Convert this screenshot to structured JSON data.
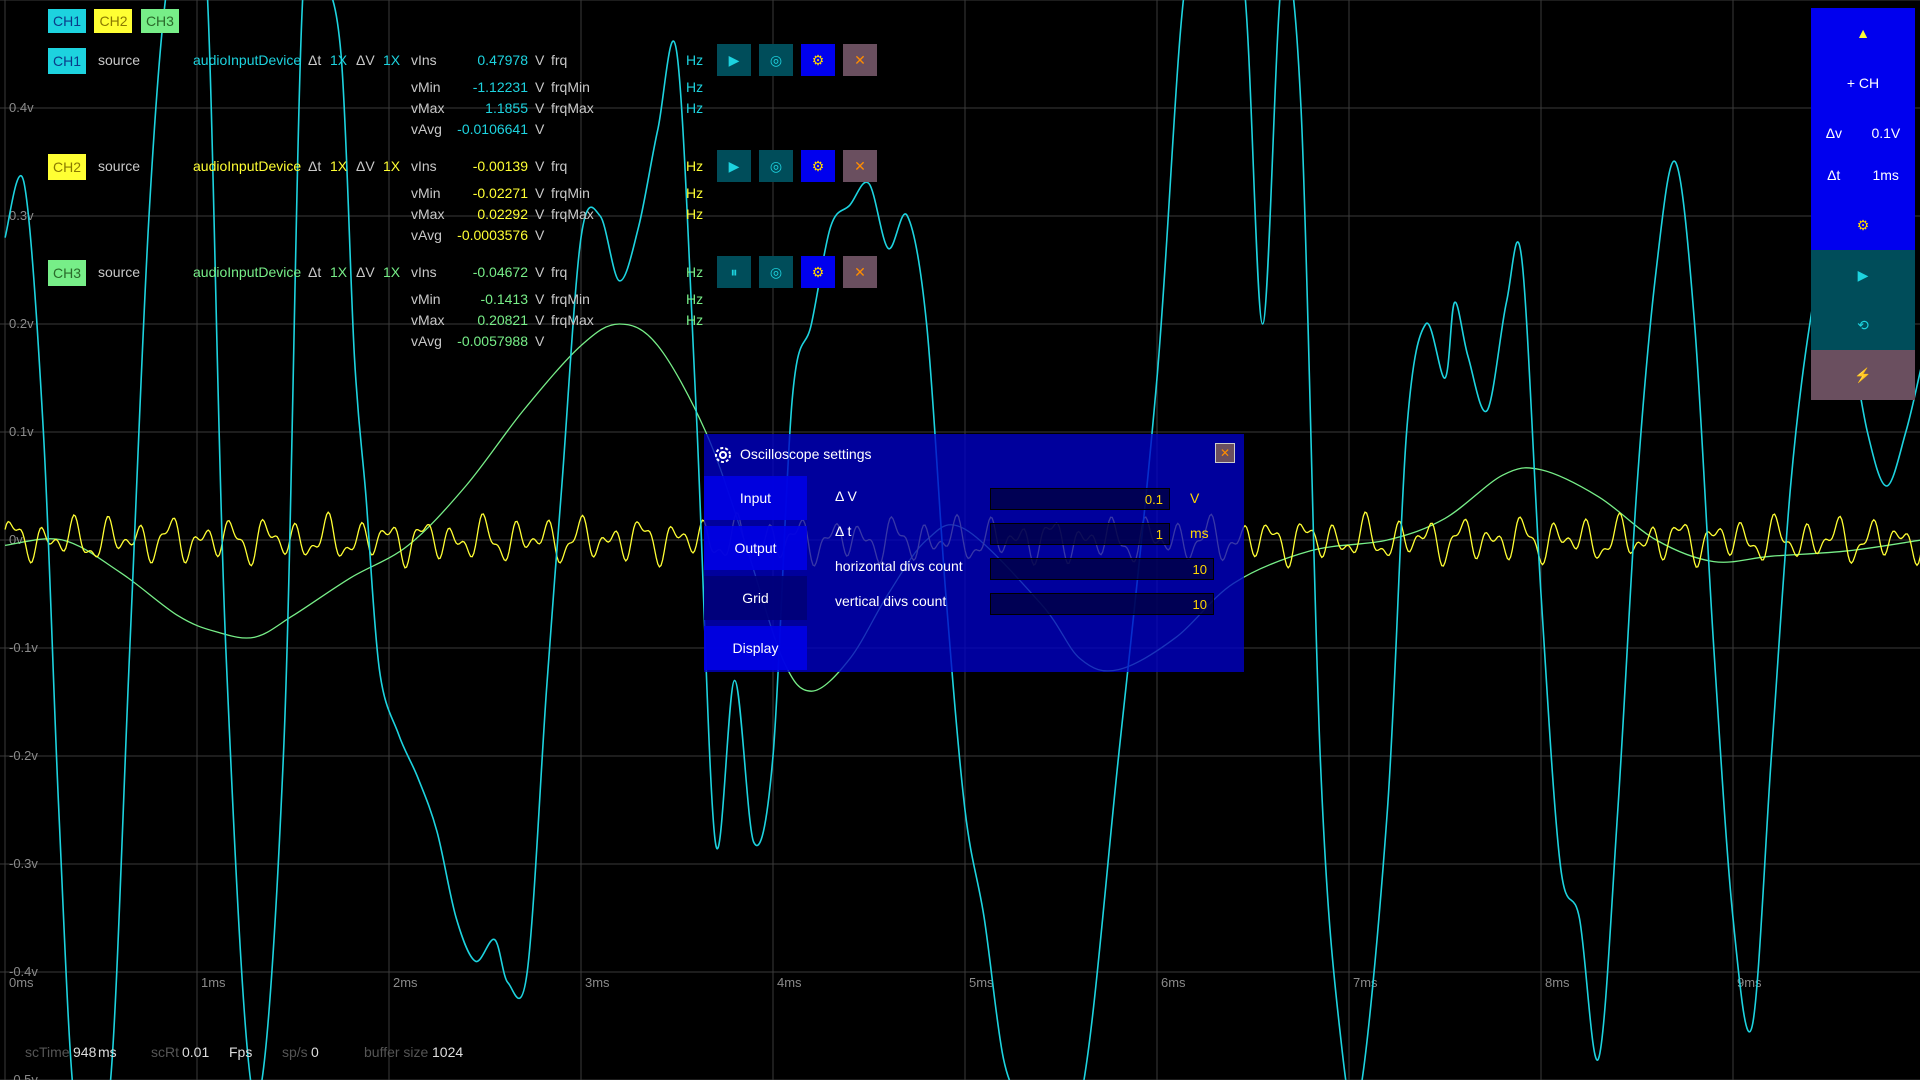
{
  "colors": {
    "ch1": "#1dd3df",
    "ch2": "#ffff33",
    "ch3": "#77ee88",
    "grid": "#3a3a3a",
    "panel_blue": "#0000ee",
    "panel_teal": "#004d5a",
    "panel_rose": "#6a4f5f"
  },
  "legend": [
    "CH1",
    "CH2",
    "CH3"
  ],
  "axes": {
    "y_labels": [
      "0.4v",
      "0.3v",
      "0.2v",
      "0.1v",
      "0v",
      "-0.1v",
      "-0.2v",
      "-0.3v",
      "-0.4v",
      "-0.5v"
    ],
    "x_labels": [
      "0ms",
      "1ms",
      "2ms",
      "3ms",
      "4ms",
      "5ms",
      "6ms",
      "7ms",
      "8ms",
      "9ms"
    ]
  },
  "channel_labels": {
    "source": "source",
    "device": "audioInputDevice",
    "dt": "Δt",
    "mult_t": "1X",
    "dv": "ΔV",
    "mult_v": "1X",
    "vins": "vIns",
    "vmin": "vMin",
    "vmax": "vMax",
    "vavg": "vAvg",
    "frq": "frq",
    "frqmin": "frqMin",
    "frqmax": "frqMax",
    "unit_v": "V",
    "unit_hz": "Hz"
  },
  "channels": [
    {
      "name": "CH1",
      "vins": "0.47978",
      "vmin": "-1.12231",
      "vmax": "1.1855",
      "vavg": "-0.0106641",
      "play_icon": "▶"
    },
    {
      "name": "CH2",
      "vins": "-0.00139",
      "vmin": "-0.02271",
      "vmax": "0.02292",
      "vavg": "-0.0003576",
      "play_icon": "▶"
    },
    {
      "name": "CH3",
      "vins": "-0.04672",
      "vmin": "-0.1413",
      "vmax": "0.20821",
      "vavg": "-0.0057988",
      "play_icon": "⏸"
    }
  ],
  "right_panel": {
    "up": "▲",
    "add_channel": "+ CH",
    "dv_label": "Δv",
    "dv_value": "0.1V",
    "dt_label": "Δt",
    "dt_value": "1ms",
    "settings": "⚙",
    "play": "▶",
    "reset": "⟲",
    "trigger": "⚡"
  },
  "dialog": {
    "title": "Oscilloscope settings",
    "close": "✕",
    "tabs": [
      "Input",
      "Output",
      "Grid",
      "Display"
    ],
    "active_tab": "Grid",
    "fields": [
      {
        "label": "Δ V",
        "value": "0.1",
        "unit": "V"
      },
      {
        "label": "Δ t",
        "value": "1",
        "unit": "ms"
      },
      {
        "label": "horizontal divs count",
        "value": "10",
        "unit": ""
      },
      {
        "label": "vertical divs count",
        "value": "10",
        "unit": ""
      }
    ]
  },
  "status": {
    "sctime_label": "scTime",
    "sctime_value": "948",
    "sctime_unit": "ms",
    "scrt_label": "scRt",
    "scrt_value": "0.01",
    "fps_label": "Fps",
    "sps_label": "sp/s",
    "sps_value": "0",
    "buffer_label": "buffer size",
    "buffer_value": "1024"
  },
  "signals": {
    "ch1": [
      [
        0.0,
        0.28
      ],
      [
        0.1,
        0.33
      ],
      [
        0.2,
        0.1
      ],
      [
        0.28,
        -0.25
      ],
      [
        0.36,
        -0.55
      ],
      [
        0.45,
        -0.75
      ],
      [
        0.55,
        -0.5
      ],
      [
        0.65,
        -0.1
      ],
      [
        0.75,
        0.3
      ],
      [
        0.85,
        0.7
      ],
      [
        0.95,
        0.9
      ],
      [
        1.05,
        0.6
      ],
      [
        1.15,
        -0.1
      ],
      [
        1.3,
        -0.6
      ],
      [
        1.45,
        -0.2
      ],
      [
        1.55,
        0.5
      ],
      [
        1.65,
        0.65
      ],
      [
        1.75,
        0.45
      ],
      [
        1.82,
        0.17
      ],
      [
        1.88,
        0.04
      ],
      [
        1.95,
        -0.12
      ],
      [
        2.05,
        -0.18
      ],
      [
        2.15,
        -0.22
      ],
      [
        2.25,
        -0.27
      ],
      [
        2.35,
        -0.35
      ],
      [
        2.45,
        -0.39
      ],
      [
        2.55,
        -0.37
      ],
      [
        2.62,
        -0.41
      ],
      [
        2.72,
        -0.4
      ],
      [
        2.82,
        -0.14
      ],
      [
        2.9,
        0.05
      ],
      [
        3.0,
        0.28
      ],
      [
        3.1,
        0.3
      ],
      [
        3.2,
        0.24
      ],
      [
        3.3,
        0.29
      ],
      [
        3.4,
        0.38
      ],
      [
        3.5,
        0.45
      ],
      [
        3.6,
        0.12
      ],
      [
        3.7,
        -0.28
      ],
      [
        3.8,
        -0.13
      ],
      [
        3.9,
        -0.28
      ],
      [
        4.0,
        -0.2
      ],
      [
        4.1,
        0.13
      ],
      [
        4.2,
        0.2
      ],
      [
        4.3,
        0.29
      ],
      [
        4.4,
        0.31
      ],
      [
        4.5,
        0.33
      ],
      [
        4.6,
        0.27
      ],
      [
        4.7,
        0.3
      ],
      [
        4.8,
        0.2
      ],
      [
        4.9,
        -0.05
      ],
      [
        5.0,
        -0.25
      ],
      [
        5.1,
        -0.35
      ],
      [
        5.2,
        -0.48
      ],
      [
        5.3,
        -0.52
      ],
      [
        5.4,
        -0.6
      ],
      [
        5.6,
        -0.8
      ],
      [
        5.8,
        -0.2
      ],
      [
        6.0,
        0.15
      ],
      [
        6.15,
        0.55
      ],
      [
        6.3,
        0.85
      ],
      [
        6.45,
        0.75
      ],
      [
        6.55,
        0.2
      ],
      [
        6.65,
        0.55
      ],
      [
        6.75,
        0.4
      ],
      [
        6.85,
        -0.2
      ],
      [
        6.95,
        -0.45
      ],
      [
        7.05,
        -0.6
      ],
      [
        7.2,
        -0.25
      ],
      [
        7.3,
        0.1
      ],
      [
        7.4,
        0.2
      ],
      [
        7.5,
        0.15
      ],
      [
        7.55,
        0.22
      ],
      [
        7.62,
        0.17
      ],
      [
        7.72,
        0.12
      ],
      [
        7.82,
        0.22
      ],
      [
        7.9,
        0.26
      ],
      [
        8.0,
        -0.05
      ],
      [
        8.1,
        -0.3
      ],
      [
        8.2,
        -0.35
      ],
      [
        8.3,
        -0.48
      ],
      [
        8.4,
        -0.25
      ],
      [
        8.5,
        0.05
      ],
      [
        8.6,
        0.25
      ],
      [
        8.7,
        0.35
      ],
      [
        8.8,
        0.2
      ],
      [
        8.9,
        -0.1
      ],
      [
        9.0,
        -0.35
      ],
      [
        9.1,
        -0.45
      ],
      [
        9.2,
        -0.2
      ],
      [
        9.3,
        0.05
      ],
      [
        9.4,
        0.2
      ],
      [
        9.5,
        0.28
      ],
      [
        9.6,
        0.2
      ],
      [
        9.7,
        0.1
      ],
      [
        9.8,
        0.05
      ],
      [
        9.9,
        0.1
      ],
      [
        9.98,
        0.16
      ]
    ],
    "ch3": [
      [
        0.0,
        -0.005
      ],
      [
        0.3,
        0.0
      ],
      [
        0.6,
        -0.03
      ],
      [
        0.9,
        -0.07
      ],
      [
        1.1,
        -0.085
      ],
      [
        1.3,
        -0.09
      ],
      [
        1.5,
        -0.07
      ],
      [
        1.8,
        -0.035
      ],
      [
        2.1,
        -0.005
      ],
      [
        2.4,
        0.05
      ],
      [
        2.7,
        0.12
      ],
      [
        3.0,
        0.18
      ],
      [
        3.2,
        0.2
      ],
      [
        3.4,
        0.18
      ],
      [
        3.65,
        0.1
      ],
      [
        3.85,
        0.0
      ],
      [
        4.05,
        -0.11
      ],
      [
        4.2,
        -0.14
      ],
      [
        4.4,
        -0.11
      ],
      [
        4.6,
        -0.05
      ],
      [
        4.8,
        0.0
      ],
      [
        5.0,
        0.01
      ],
      [
        5.4,
        -0.06
      ],
      [
        5.6,
        -0.11
      ],
      [
        5.8,
        -0.12
      ],
      [
        6.1,
        -0.09
      ],
      [
        6.4,
        -0.04
      ],
      [
        6.8,
        -0.01
      ],
      [
        7.2,
        0.0
      ],
      [
        7.5,
        0.02
      ],
      [
        7.8,
        0.06
      ],
      [
        8.0,
        0.065
      ],
      [
        8.3,
        0.04
      ],
      [
        8.6,
        0.0
      ],
      [
        8.9,
        -0.02
      ],
      [
        9.2,
        -0.015
      ],
      [
        9.6,
        -0.01
      ],
      [
        9.98,
        0.0
      ]
    ]
  }
}
